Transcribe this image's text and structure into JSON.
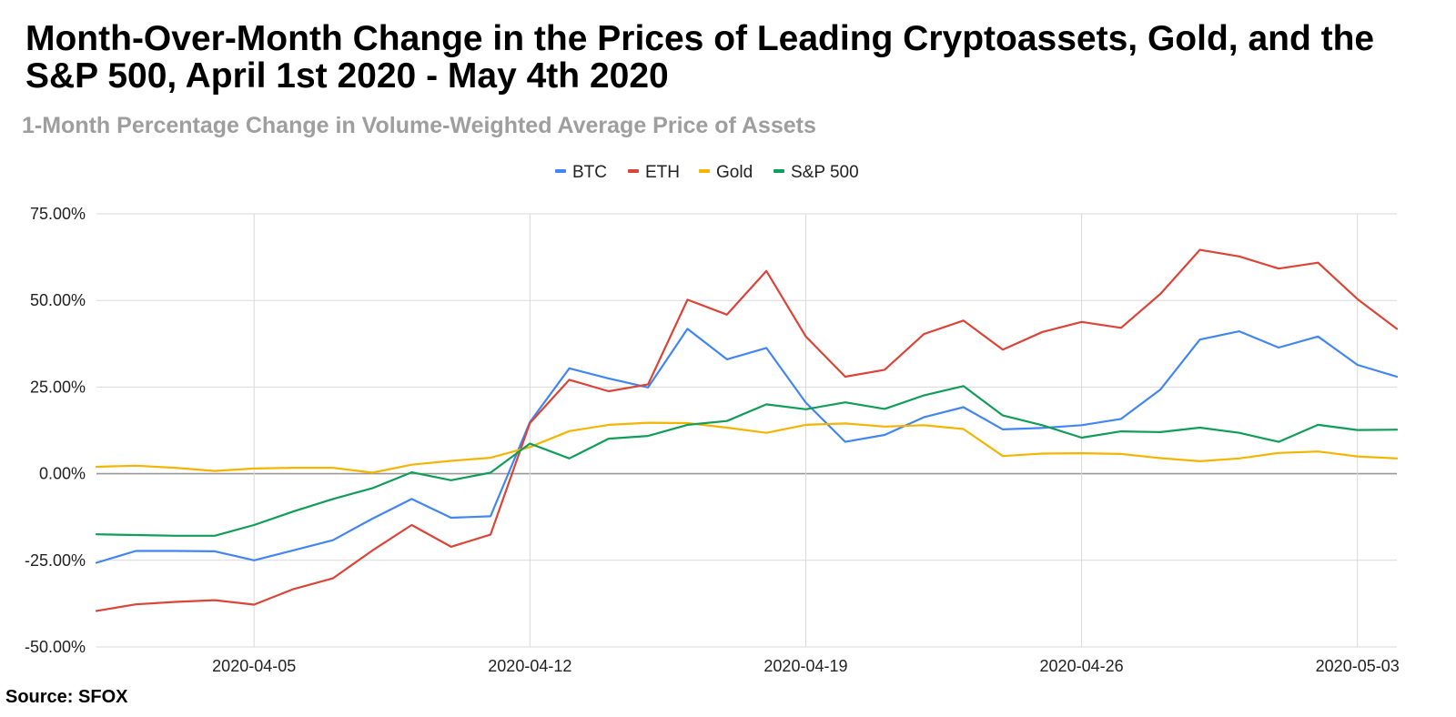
{
  "title": "Month-Over-Month Change in the Prices of Leading Cryptoassets, Gold, and the S&P 500, April 1st 2020 - May 4th 2020",
  "subtitle": "1-Month Percentage Change in Volume-Weighted Average Price of Assets",
  "source": "Source: SFOX",
  "chart_data": {
    "type": "line",
    "title": "Month-Over-Month Change in the Prices of Leading Cryptoassets, Gold, and the S&P 500, April 1st 2020 - May 4th 2020",
    "subtitle": "1-Month Percentage Change in Volume-Weighted Average Price of Assets",
    "xlabel": "",
    "ylabel": "",
    "x": [
      "2020-04-01",
      "2020-04-02",
      "2020-04-03",
      "2020-04-04",
      "2020-04-05",
      "2020-04-06",
      "2020-04-07",
      "2020-04-08",
      "2020-04-09",
      "2020-04-10",
      "2020-04-11",
      "2020-04-12",
      "2020-04-13",
      "2020-04-14",
      "2020-04-15",
      "2020-04-16",
      "2020-04-17",
      "2020-04-18",
      "2020-04-19",
      "2020-04-20",
      "2020-04-21",
      "2020-04-22",
      "2020-04-23",
      "2020-04-24",
      "2020-04-25",
      "2020-04-26",
      "2020-04-27",
      "2020-04-28",
      "2020-04-29",
      "2020-04-30",
      "2020-05-01",
      "2020-05-02",
      "2020-05-03",
      "2020-05-04"
    ],
    "x_ticks": [
      "2020-04-05",
      "2020-04-12",
      "2020-04-19",
      "2020-04-26",
      "2020-05-03"
    ],
    "ylim": [
      -50,
      75
    ],
    "y_ticks": [
      75,
      50,
      25,
      0,
      -25,
      -50
    ],
    "y_tick_labels": [
      "75.00%",
      "50.00%",
      "25.00%",
      "0.00%",
      "-25.00%",
      "-50.00%"
    ],
    "grid": true,
    "legend_position": "top-center",
    "series": [
      {
        "name": "BTC",
        "color": "#4285f4",
        "values": [
          -25.7,
          -22.3,
          -22.3,
          -22.4,
          -25.0,
          -22.1,
          -19.2,
          -13.0,
          -7.3,
          -12.7,
          -12.3,
          14.9,
          30.4,
          27.5,
          24.9,
          41.8,
          33.0,
          36.3,
          20.5,
          9.2,
          11.2,
          16.3,
          19.2,
          12.8,
          13.2,
          14.0,
          15.8,
          24.3,
          38.7,
          41.1,
          36.4,
          39.6,
          31.4,
          28.0
        ]
      },
      {
        "name": "ETH",
        "color": "#db4437",
        "values": [
          -39.6,
          -37.7,
          -37.0,
          -36.5,
          -37.8,
          -33.3,
          -30.2,
          -22.2,
          -14.8,
          -21.1,
          -17.6,
          14.6,
          27.1,
          23.8,
          25.8,
          50.2,
          45.9,
          58.5,
          39.6,
          28.0,
          30.0,
          40.3,
          44.2,
          35.8,
          40.9,
          43.8,
          42.1,
          51.9,
          64.6,
          62.7,
          59.2,
          60.9,
          50.4,
          41.8
        ]
      },
      {
        "name": "Gold",
        "color": "#f4b400",
        "values": [
          2.0,
          2.3,
          1.7,
          0.8,
          1.5,
          1.7,
          1.7,
          0.3,
          2.6,
          3.7,
          4.6,
          7.7,
          12.3,
          14.1,
          14.7,
          14.6,
          13.3,
          11.8,
          14.1,
          14.5,
          13.6,
          14.0,
          12.9,
          5.1,
          5.8,
          5.9,
          5.7,
          4.5,
          3.6,
          4.4,
          6.0,
          6.4,
          5.0,
          4.4
        ]
      },
      {
        "name": "S&P 500",
        "color": "#0f9d58",
        "values": [
          -17.5,
          -17.7,
          -17.9,
          -17.9,
          -14.8,
          -10.9,
          -7.3,
          -4.2,
          0.4,
          -1.9,
          0.3,
          8.7,
          4.4,
          10.1,
          10.9,
          14.1,
          15.2,
          20.0,
          18.6,
          20.6,
          18.7,
          22.6,
          25.3,
          16.8,
          14.0,
          10.4,
          12.2,
          12.0,
          13.3,
          11.8,
          9.2,
          14.1,
          12.6,
          12.7
        ]
      }
    ]
  }
}
